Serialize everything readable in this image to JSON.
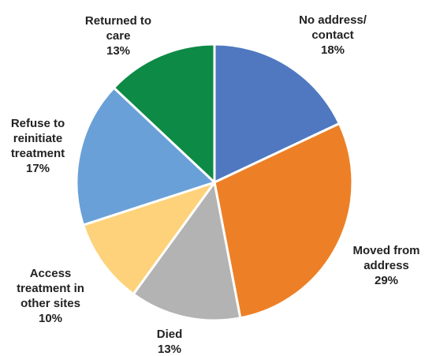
{
  "chart_data": {
    "type": "pie",
    "slices": [
      {
        "label": "No address/ contact",
        "label_lines": [
          "No address/",
          "contact"
        ],
        "value": 18,
        "value_label": "18%",
        "color": "#4F78C0"
      },
      {
        "label": "Moved from address",
        "label_lines": [
          "Moved from",
          "address"
        ],
        "value": 29,
        "value_label": "29%",
        "color": "#ED8026"
      },
      {
        "label": "Died",
        "label_lines": [
          "Died"
        ],
        "value": 13,
        "value_label": "13%",
        "color": "#B3B3B3"
      },
      {
        "label": "Access treatment in other sites",
        "label_lines": [
          "Access",
          "treatment in",
          "other sites"
        ],
        "value": 10,
        "value_label": "10%",
        "color": "#FDD27A"
      },
      {
        "label": "Refuse to reinitiate treatment",
        "label_lines": [
          "Refuse to",
          "reinitiate",
          "treatment"
        ],
        "value": 17,
        "value_label": "17%",
        "color": "#69A0D8"
      },
      {
        "label": "Returned to care",
        "label_lines": [
          "Returned to",
          "care"
        ],
        "value": 13,
        "value_label": "13%",
        "color": "#0D8A45"
      }
    ]
  }
}
